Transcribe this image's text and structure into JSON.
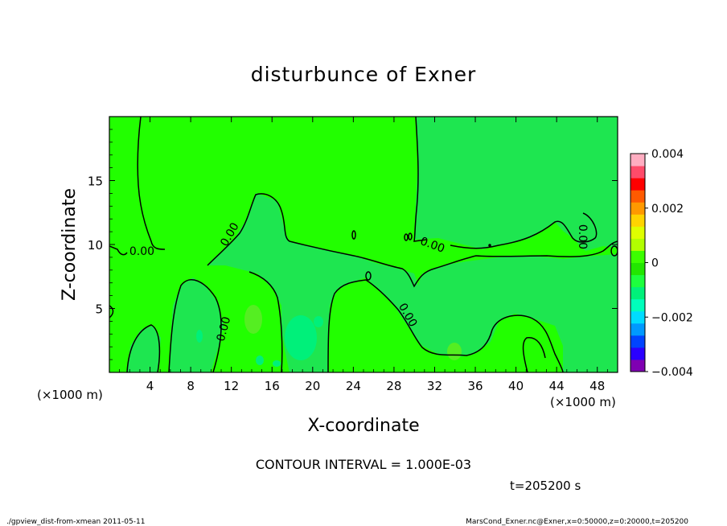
{
  "chart_data": {
    "type": "contour",
    "title": "disturbunce of Exner",
    "xlabel": "X-coordinate",
    "ylabel": "Z-coordinate",
    "x_unit_left": "(×1000 m)",
    "x_unit_right": "(×1000 m)",
    "xlim": [
      0,
      50
    ],
    "ylim": [
      0,
      20
    ],
    "x_ticks": [
      4,
      8,
      12,
      16,
      20,
      24,
      28,
      32,
      36,
      40,
      44,
      48
    ],
    "y_ticks": [
      5,
      10,
      15
    ],
    "contour_interval_text": "CONTOUR INTERVAL = 1.000E-03",
    "time_text": "t=205200 s",
    "contour_labels": [
      {
        "text": "0.00",
        "x": 3.2,
        "z": 9.5,
        "angle": 0
      },
      {
        "text": "0.00",
        "x": 11.8,
        "z": 10.8,
        "angle": -60
      },
      {
        "text": "0.00",
        "x": 11.2,
        "z": 3.4,
        "angle": -75
      },
      {
        "text": "0.00",
        "x": 29.4,
        "z": 4.5,
        "angle": 60
      },
      {
        "text": "0.00",
        "x": 31.8,
        "z": 10.0,
        "angle": 20
      },
      {
        "text": "0.00",
        "x": 46.6,
        "z": 10.6,
        "angle": 90
      }
    ],
    "colorbar": {
      "min": -0.004,
      "max": 0.004,
      "tick_values": [
        0.004,
        0.002,
        0,
        -0.002,
        -0.004
      ],
      "tick_labels": [
        "0.004",
        "0.002",
        "0",
        "−0.002",
        "−0.004"
      ],
      "colors": [
        "#7f00b2",
        "#2a00ff",
        "#0044ff",
        "#0099ff",
        "#00dcff",
        "#00ffbb",
        "#00f07a",
        "#1dff3d",
        "#22e600",
        "#3cff00",
        "#b2ff00",
        "#dfff00",
        "#ffd400",
        "#ff9900",
        "#ff5a00",
        "#ff0000",
        "#ff4b6a",
        "#ffadc1"
      ]
    },
    "background_level_color": "#22ff00",
    "secondary_level_color": "#1ee650"
  },
  "footer": {
    "left": "./gpview_dist-from-xmean  2011-05-11",
    "right": "MarsCond_Exner.nc@Exner,x=0:50000,z=0:20000,t=205200"
  }
}
